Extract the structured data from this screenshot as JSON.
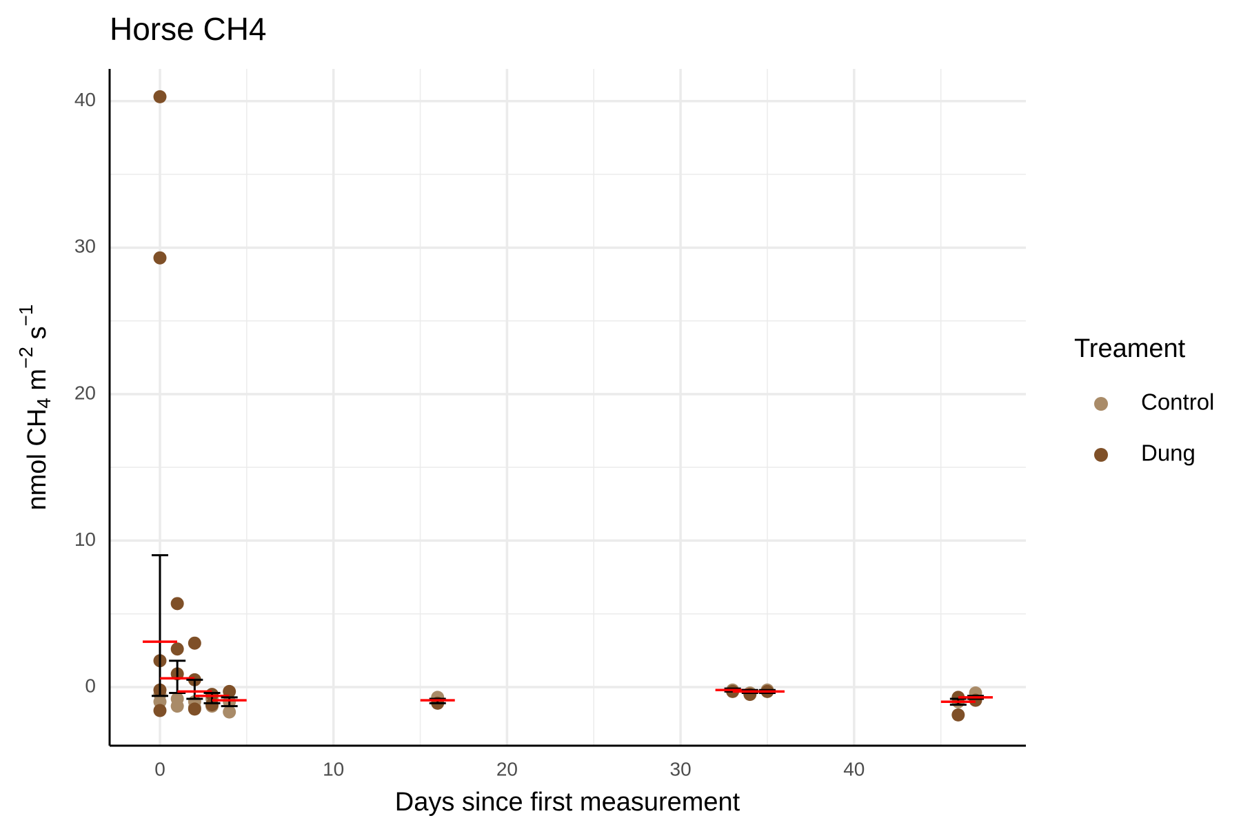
{
  "chart_data": {
    "type": "scatter",
    "title": "Horse CH4",
    "xlabel": "Days since first measurement",
    "ylabel": {
      "text": "nmol CH",
      "sub": "4",
      "mid": " m",
      "sup1": "−2",
      "mid2": " s",
      "sup2": "−1"
    },
    "legend_title": "Treament",
    "legend": "right",
    "grid": true,
    "xlim": [
      -2.9,
      49.9
    ],
    "ylim": [
      -4,
      42.2
    ],
    "xticks": [
      0,
      10,
      20,
      30,
      40
    ],
    "yticks": [
      0,
      10,
      20,
      30,
      40
    ],
    "xminorticks": [
      5,
      15,
      25,
      35,
      45
    ],
    "yminorticks": [
      5,
      15,
      25,
      35
    ],
    "series": [
      {
        "name": "Control",
        "color": "#a98b68",
        "x": [
          0,
          0,
          1,
          1,
          2,
          2,
          3,
          3,
          4,
          4,
          16,
          33,
          34,
          35,
          46,
          47
        ],
        "values": [
          -0.5,
          -1.0,
          -0.8,
          -1.3,
          -1.0,
          -1.4,
          -0.8,
          -1.3,
          -1.0,
          -1.7,
          -0.7,
          -0.2,
          -0.4,
          -0.2,
          -1.0,
          -0.4
        ]
      },
      {
        "name": "Dung",
        "color": "#7f5028",
        "x": [
          0,
          0,
          0,
          0,
          0,
          1,
          1,
          1,
          2,
          2,
          2,
          3,
          3,
          4,
          16,
          33,
          34,
          35,
          46,
          46,
          47
        ],
        "values": [
          40.3,
          29.3,
          1.8,
          -0.2,
          -1.6,
          5.7,
          2.6,
          0.9,
          3.0,
          0.5,
          -1.5,
          -0.5,
          -1.2,
          -0.3,
          -1.1,
          -0.3,
          -0.5,
          -0.3,
          -0.7,
          -1.9,
          -0.9
        ]
      }
    ],
    "summary": {
      "mean_color": "#ff0000",
      "error_color": "#000000",
      "x": [
        0,
        1,
        2,
        3,
        4,
        16,
        33,
        34,
        35,
        46,
        47
      ],
      "mean": [
        3.1,
        0.6,
        -0.3,
        -0.6,
        -0.9,
        -0.9,
        -0.2,
        -0.3,
        -0.3,
        -1.0,
        -0.7
      ],
      "low": [
        -0.6,
        -0.4,
        -0.8,
        -1.1,
        -1.3,
        -1.1,
        -0.3,
        -0.4,
        -0.4,
        -1.2,
        -0.8
      ],
      "high": [
        9.0,
        1.8,
        0.5,
        -0.4,
        -0.7,
        -0.8,
        -0.1,
        -0.2,
        -0.2,
        -0.8,
        -0.6
      ]
    }
  }
}
